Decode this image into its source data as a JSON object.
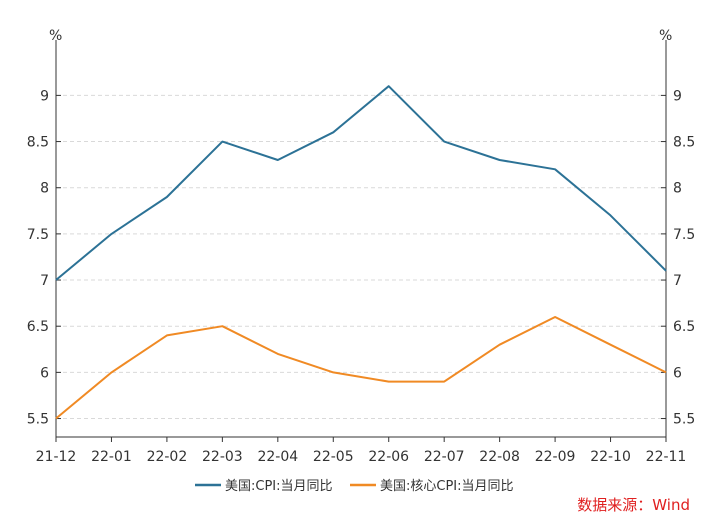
{
  "chart_data": {
    "type": "line",
    "title": "",
    "xlabel": "",
    "ylabel": "%",
    "y2label": "%",
    "categories": [
      "21-12",
      "22-01",
      "22-02",
      "22-03",
      "22-04",
      "22-05",
      "22-06",
      "22-07",
      "22-08",
      "22-09",
      "22-10",
      "22-11"
    ],
    "series": [
      {
        "name": "美国:CPI:当月同比",
        "color": "#2c7296",
        "values": [
          7.0,
          7.5,
          7.9,
          8.5,
          8.3,
          8.6,
          9.1,
          8.5,
          8.3,
          8.2,
          7.7,
          7.1
        ]
      },
      {
        "name": "美国:核心CPI:当月同比",
        "color": "#f08a24",
        "values": [
          5.5,
          6.0,
          6.4,
          6.5,
          6.2,
          6.0,
          5.9,
          5.9,
          6.3,
          6.6,
          6.3,
          6.0
        ]
      }
    ],
    "ylim": [
      5.3,
      9.6
    ],
    "yticks": [
      "5.5",
      "6",
      "6.5",
      "7",
      "7.5",
      "8",
      "8.5",
      "9"
    ],
    "grid": true,
    "legend_position": "bottom",
    "dual_axis_same_scale": true
  },
  "source_note": "数据来源：Wind",
  "colors": {
    "axis": "#333333",
    "grid": "#d9d9d9",
    "source_note": "#e02020"
  }
}
